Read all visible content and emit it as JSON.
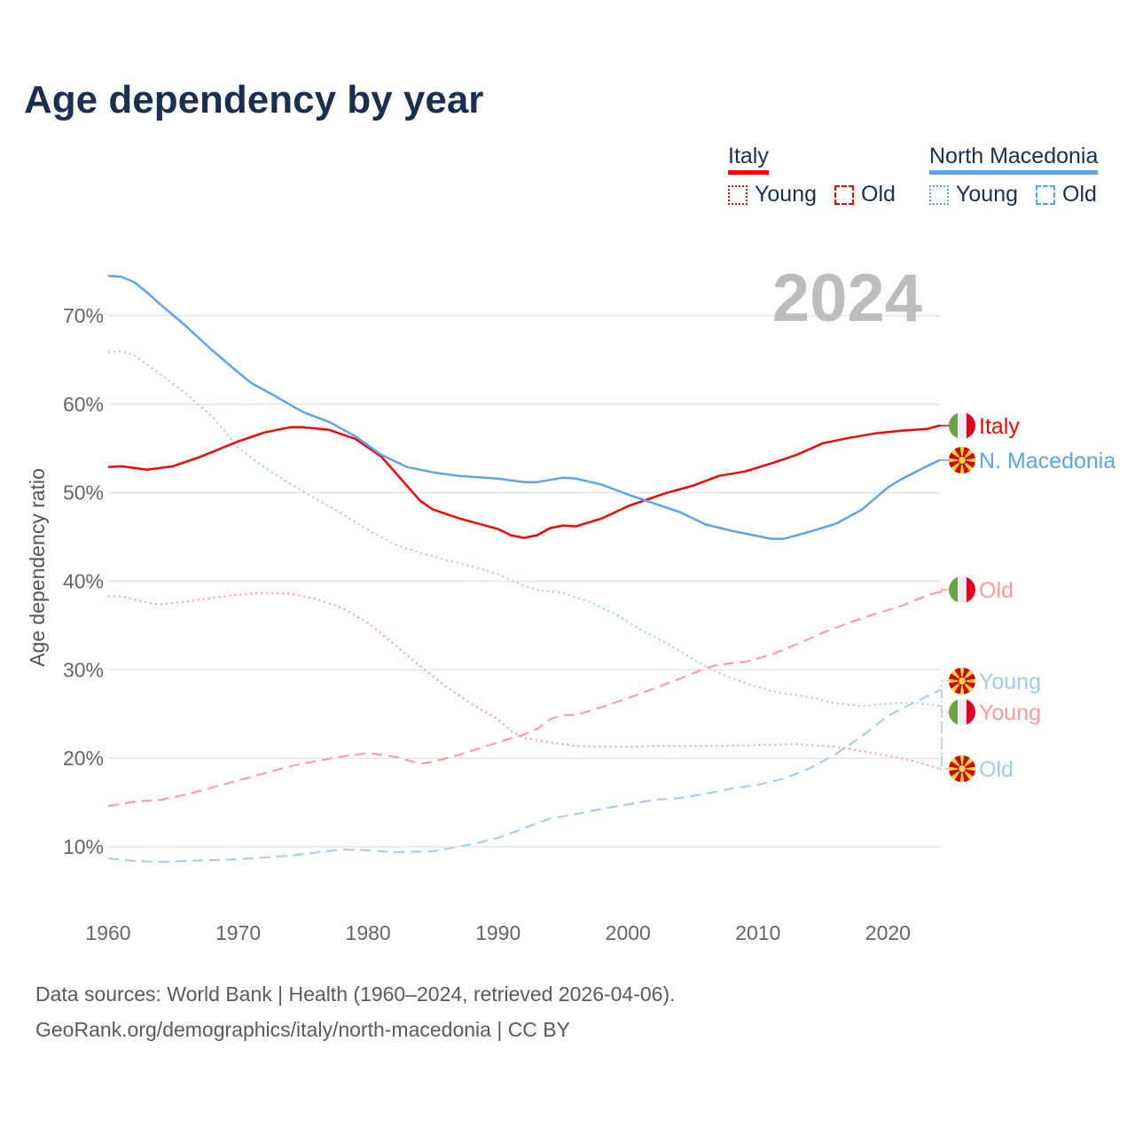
{
  "title": "Age dependency by year",
  "legend": {
    "groups": [
      {
        "country": "Italy",
        "color": "#ff0000",
        "items": [
          "Young",
          "Old"
        ]
      },
      {
        "country": "North Macedonia",
        "color": "#5fa4ea",
        "items": [
          "Young",
          "Old"
        ]
      }
    ]
  },
  "footer": {
    "line1": "Data sources: World Bank | Health (1960–2024, retrieved 2026-04-06).",
    "line2": "GeoRank.org/demographics/italy/north-macedonia | CC BY"
  },
  "chart_data": {
    "type": "line",
    "title": "Age dependency by year",
    "year_label": "2024",
    "xlabel": "",
    "ylabel": "Age dependency ratio",
    "xlim": [
      1960,
      2024
    ],
    "ylim": [
      3,
      78
    ],
    "x_ticks": [
      "1960",
      "1970",
      "1980",
      "1990",
      "2000",
      "2010",
      "2020"
    ],
    "x_tick_values": [
      1960,
      1970,
      1980,
      1990,
      2000,
      2010,
      2020
    ],
    "y_ticks": [
      "10%",
      "20%",
      "30%",
      "40%",
      "50%",
      "60%",
      "70%"
    ],
    "y_tick_values": [
      10,
      20,
      30,
      40,
      50,
      60,
      70
    ],
    "grid": true,
    "legend_position": "top-right",
    "series": [
      {
        "name": "Italy",
        "end_label": "Italy",
        "flag": "italy",
        "style": "solid",
        "color": "#ff0000",
        "label_color": "#ff0000",
        "x": [
          1960,
          1961,
          1963,
          1965,
          1967,
          1970,
          1972,
          1974,
          1975,
          1977,
          1979,
          1981,
          1984,
          1985,
          1987,
          1990,
          1991,
          1992,
          1993,
          1994,
          1995,
          1996,
          1998,
          2000,
          2002,
          2003,
          2005,
          2007,
          2009,
          2011,
          2013,
          2015,
          2017,
          2019,
          2021,
          2023,
          2024
        ],
        "y": [
          52.9,
          53.0,
          52.6,
          53.0,
          54.0,
          55.8,
          56.8,
          57.4,
          57.4,
          57.1,
          56.1,
          54.1,
          49.1,
          48.1,
          47.1,
          45.9,
          45.2,
          44.9,
          45.2,
          46.0,
          46.3,
          46.2,
          47.1,
          48.5,
          49.5,
          50.0,
          50.8,
          51.9,
          52.4,
          53.3,
          54.3,
          55.6,
          56.2,
          56.7,
          57.0,
          57.2,
          57.6
        ]
      },
      {
        "name": "North Macedonia",
        "end_label": "N. Macedonia",
        "flag": "macedonia",
        "style": "solid",
        "color": "#5fa4ea",
        "label_color": "#5fa4ea",
        "x": [
          1960,
          1961,
          1962,
          1963,
          1964,
          1966,
          1968,
          1970,
          1971,
          1973,
          1975,
          1977,
          1979,
          1981,
          1983,
          1985,
          1987,
          1990,
          1992,
          1993,
          1995,
          1996,
          1998,
          2000,
          2002,
          2004,
          2006,
          2008,
          2010,
          2011,
          2012,
          2014,
          2016,
          2018,
          2020,
          2021,
          2023,
          2024
        ],
        "y": [
          74.5,
          74.4,
          73.8,
          72.6,
          71.3,
          68.8,
          66.1,
          63.6,
          62.4,
          60.8,
          59.1,
          58.0,
          56.4,
          54.3,
          52.9,
          52.3,
          51.9,
          51.6,
          51.2,
          51.2,
          51.7,
          51.6,
          50.9,
          49.8,
          48.8,
          47.8,
          46.4,
          45.7,
          45.1,
          44.8,
          44.8,
          45.6,
          46.5,
          48.1,
          50.6,
          51.5,
          53.0,
          53.7
        ]
      },
      {
        "name": "Italy Young",
        "end_label": "Young",
        "flag": "italy",
        "style": "dotted",
        "color": "#ff9a9a",
        "label_color": "#ff9a9a",
        "x": [
          1960,
          1961,
          1963,
          1964,
          1966,
          1968,
          1970,
          1972,
          1974,
          1976,
          1978,
          1980,
          1982,
          1984,
          1986,
          1988,
          1990,
          1991,
          1992,
          1994,
          1996,
          1998,
          2000,
          2002,
          2006,
          2010,
          2013,
          2016,
          2018,
          2020,
          2022,
          2024
        ],
        "y": [
          38.3,
          38.3,
          37.6,
          37.4,
          37.7,
          38.1,
          38.5,
          38.7,
          38.6,
          38.0,
          37.0,
          35.3,
          32.9,
          30.4,
          28.1,
          26.1,
          24.4,
          23.1,
          22.3,
          21.8,
          21.4,
          21.3,
          21.3,
          21.4,
          21.4,
          21.5,
          21.6,
          21.3,
          20.8,
          20.3,
          19.7,
          18.8
        ]
      },
      {
        "name": "Italy Old",
        "end_label": "Old",
        "flag": "italy",
        "style": "dashed",
        "color": "#ff9a9a",
        "label_color": "#ff9a9a",
        "x": [
          1960,
          1962,
          1964,
          1966,
          1968,
          1970,
          1972,
          1974,
          1976,
          1978,
          1980,
          1982,
          1984,
          1985,
          1987,
          1990,
          1992,
          1993,
          1994,
          1995,
          1996,
          1998,
          2000,
          2002,
          2004,
          2006,
          2007,
          2009,
          2011,
          2013,
          2015,
          2017,
          2019,
          2021,
          2023,
          2024
        ],
        "y": [
          14.6,
          15.1,
          15.3,
          15.9,
          16.7,
          17.5,
          18.3,
          19.1,
          19.7,
          20.2,
          20.6,
          20.2,
          19.4,
          19.6,
          20.4,
          21.8,
          22.7,
          23.3,
          24.4,
          24.9,
          24.9,
          25.8,
          26.8,
          27.9,
          29.0,
          30.2,
          30.6,
          30.9,
          31.7,
          32.9,
          34.2,
          35.3,
          36.3,
          37.2,
          38.4,
          38.8
        ]
      },
      {
        "name": "North Macedonia Young",
        "end_label": "Young",
        "flag": "macedonia",
        "style": "dotted",
        "color": "#a3caf2",
        "label_color": "#a3caf2",
        "x": [
          1960,
          1961,
          1962,
          1964,
          1966,
          1968,
          1970,
          1972,
          1974,
          1976,
          1978,
          1980,
          1982,
          1984,
          1986,
          1988,
          1990,
          1992,
          1993,
          1995,
          1997,
          1999,
          2001,
          2003,
          2005,
          2007,
          2009,
          2011,
          2014,
          2016,
          2018,
          2020,
          2022,
          2024
        ],
        "y": [
          65.9,
          66.0,
          65.5,
          63.4,
          61.2,
          58.6,
          55.1,
          52.9,
          51.0,
          49.3,
          47.6,
          45.8,
          44.2,
          43.2,
          42.4,
          41.7,
          40.8,
          39.5,
          39.0,
          38.7,
          37.7,
          36.3,
          34.5,
          33.0,
          31.2,
          29.6,
          28.5,
          27.6,
          26.9,
          26.2,
          25.9,
          26.2,
          26.3,
          25.9
        ]
      },
      {
        "name": "North Macedonia Old",
        "end_label": "Old",
        "flag": "macedonia",
        "style": "dashed",
        "color": "#a3caf2",
        "label_color": "#a3caf2",
        "x": [
          1960,
          1962,
          1964,
          1966,
          1970,
          1974,
          1978,
          1980,
          1982,
          1985,
          1988,
          1990,
          1992,
          1994,
          1996,
          1998,
          2000,
          2002,
          2004,
          2006,
          2008,
          2010,
          2012,
          2014,
          2016,
          2018,
          2020,
          2022,
          2024
        ],
        "y": [
          8.7,
          8.4,
          8.3,
          8.4,
          8.6,
          9.0,
          9.7,
          9.6,
          9.4,
          9.5,
          10.3,
          11.0,
          12.1,
          13.2,
          13.7,
          14.3,
          14.8,
          15.3,
          15.5,
          16.0,
          16.6,
          17.0,
          17.7,
          18.9,
          20.5,
          22.5,
          24.8,
          26.3,
          27.7
        ]
      }
    ]
  }
}
